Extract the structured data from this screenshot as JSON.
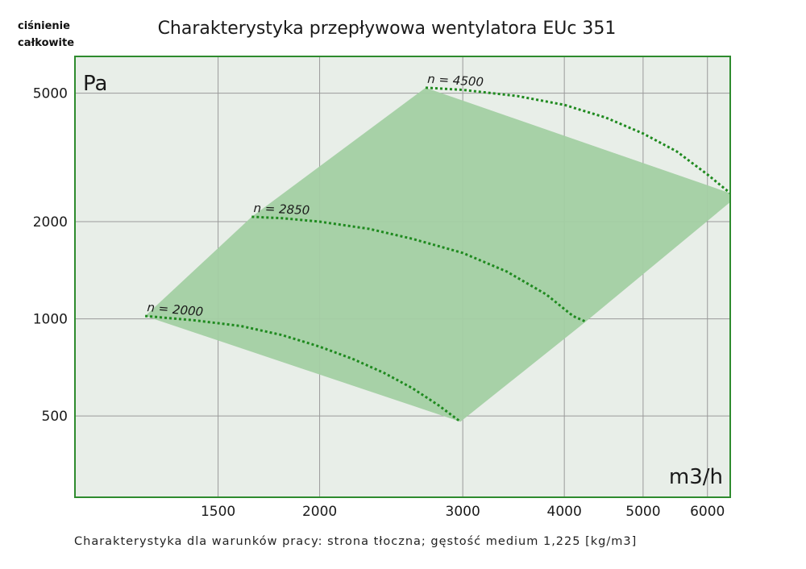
{
  "chart_data": {
    "type": "line",
    "title": "Charakterystyka przepływowa wentylatora EUc 351",
    "ylabel_lines": [
      "ciśnienie",
      "całkowite"
    ],
    "y_unit": "Pa",
    "x_unit": "m3/h",
    "footnote": "Charakterystyka dla warunków pracy: strona tłoczna; gęstość medium 1,225 [kg/m3]",
    "x_scale": "log",
    "y_scale": "log",
    "xlim": [
      1000,
      6400
    ],
    "ylim": [
      280,
      6500
    ],
    "x_ticks": [
      1500,
      2000,
      3000,
      4000,
      5000,
      6000
    ],
    "y_ticks": [
      500,
      1000,
      2000,
      5000
    ],
    "grid": true,
    "operating_region_color": "#a3cfa3",
    "curve_color": "#1f8a1f",
    "plot_background": "#e8eee8",
    "frame_color": "#2e8b2e",
    "series": [
      {
        "name": "n = 2000",
        "points": [
          [
            1220,
            1020
          ],
          [
            1400,
            990
          ],
          [
            1600,
            950
          ],
          [
            1800,
            890
          ],
          [
            2000,
            820
          ],
          [
            2200,
            750
          ],
          [
            2400,
            680
          ],
          [
            2600,
            610
          ],
          [
            2800,
            540
          ],
          [
            2980,
            480
          ]
        ]
      },
      {
        "name": "n = 2850",
        "points": [
          [
            1650,
            2070
          ],
          [
            1800,
            2050
          ],
          [
            2000,
            2000
          ],
          [
            2300,
            1900
          ],
          [
            2600,
            1770
          ],
          [
            3000,
            1600
          ],
          [
            3400,
            1400
          ],
          [
            3800,
            1190
          ],
          [
            4100,
            1020
          ],
          [
            4250,
            980
          ]
        ]
      },
      {
        "name": "n = 4500",
        "points": [
          [
            2700,
            5200
          ],
          [
            3000,
            5120
          ],
          [
            3500,
            4900
          ],
          [
            4000,
            4600
          ],
          [
            4500,
            4200
          ],
          [
            5000,
            3750
          ],
          [
            5500,
            3300
          ],
          [
            6000,
            2800
          ],
          [
            6400,
            2450
          ]
        ]
      }
    ],
    "operating_region": [
      [
        1220,
        1020
      ],
      [
        1650,
        2070
      ],
      [
        2700,
        5200
      ],
      [
        6400,
        2450
      ],
      [
        6400,
        2300
      ],
      [
        4250,
        980
      ],
      [
        2980,
        480
      ]
    ]
  }
}
